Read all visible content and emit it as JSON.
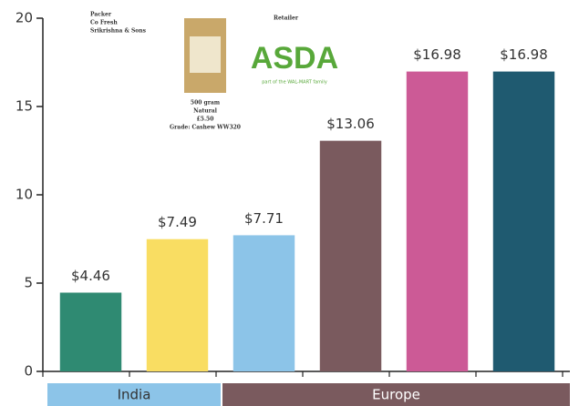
{
  "chart_data": {
    "type": "bar",
    "categories": [
      null,
      null,
      null,
      null,
      null,
      null
    ],
    "values": [
      4.46,
      7.49,
      7.71,
      13.06,
      16.98,
      16.98
    ],
    "value_labels": [
      "$4.46",
      "$7.49",
      "$7.71",
      "$13.06",
      "$16.98",
      "$16.98"
    ],
    "colors": [
      "#2f8a72",
      "#f9dd62",
      "#8cc4e8",
      "#7a5a5e",
      "#cc5a96",
      "#1f5a70"
    ],
    "ylim": [
      0,
      20
    ],
    "yticks": [
      0,
      5,
      10,
      15,
      20
    ],
    "groups": [
      "India",
      "Europe"
    ],
    "annotations": {
      "packer": [
        "Packer",
        "Co Fresh",
        "Srikrishna & Sons"
      ],
      "product": [
        "500 gram",
        "Natural",
        "£5.50",
        "Grade: Cashew WW320"
      ],
      "retailer": "Retailer",
      "logo": "ASDA",
      "logo_tagline": "part of the WAL-MART family"
    }
  }
}
